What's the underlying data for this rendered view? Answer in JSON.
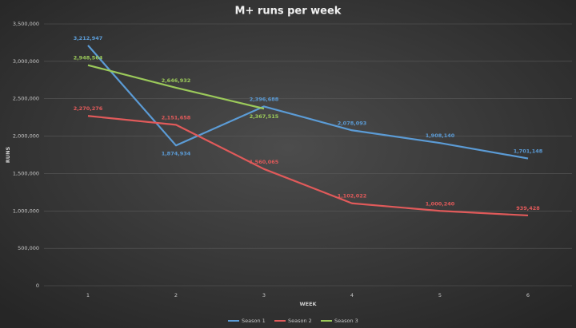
{
  "chart_data": {
    "type": "line",
    "title": "M+ runs per week",
    "x_label": "WEEK",
    "y_label": "RUNS",
    "categories": [
      "1",
      "2",
      "3",
      "4",
      "5",
      "6"
    ],
    "series": [
      {
        "name": "Season 1",
        "color": "#5b9bd5",
        "values": [
          3212947,
          1874934,
          2396688,
          2078093,
          1908140,
          1701148
        ],
        "value_labels": [
          "3,212,947",
          "1,874,934",
          "2,396,688",
          "2,078,093",
          "1,908,140",
          "1,701,148"
        ]
      },
      {
        "name": "Season 2",
        "color": "#e05a5a",
        "values": [
          2270276,
          2151658,
          1560065,
          1102022,
          1000240,
          939428
        ],
        "value_labels": [
          "2,270,276",
          "2,151,658",
          "1,560,065",
          "1,102,022",
          "1,000,240",
          "939,428"
        ]
      },
      {
        "name": "Season 3",
        "color": "#9bc95a",
        "values": [
          2948564,
          2646932,
          2367515,
          null,
          null,
          null
        ],
        "value_labels": [
          "2,948,564",
          "2,646,932",
          "2,367,515",
          null,
          null,
          null
        ]
      }
    ],
    "ylim": [
      0,
      3500000
    ],
    "yticks": [
      0,
      {
        "value": 500000,
        "label": "500,000"
      },
      {
        "value": 1000000,
        "label": "1,000,000"
      },
      {
        "value": 1500000,
        "label": "1,500,000"
      },
      {
        "value": 2000000,
        "label": "2,000,000"
      },
      {
        "value": 2500000,
        "label": "2,500,000"
      },
      {
        "value": 3000000,
        "label": "3,000,000"
      },
      {
        "value": 3500000,
        "label": "3,500,000"
      }
    ],
    "grid": true,
    "legend": "bottom"
  }
}
